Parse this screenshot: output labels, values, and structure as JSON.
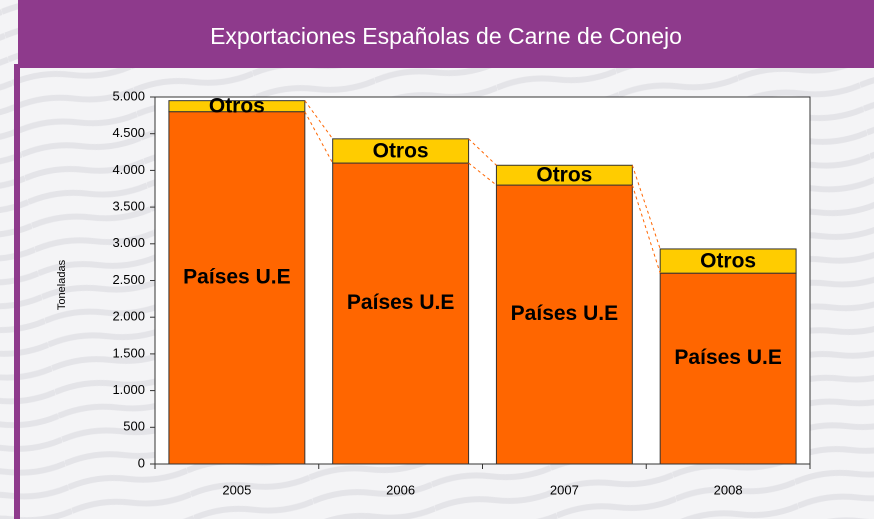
{
  "chart_data": {
    "type": "stacked_bar",
    "title": "Exportaciones Españolas de Carne de Conejo",
    "y_label": "Toneladas",
    "categories": [
      "2005",
      "2006",
      "2007",
      "2008"
    ],
    "series": [
      {
        "name": "Países U.E",
        "color": "#ff6600",
        "values": [
          4800,
          4100,
          3800,
          2600
        ]
      },
      {
        "name": "Otros",
        "color": "#ffcc00",
        "values": [
          150,
          330,
          270,
          330
        ]
      }
    ],
    "ylim": [
      0,
      5000
    ],
    "yticks": [
      0,
      500,
      {
        "value": 1000,
        "label": "1.000"
      },
      {
        "value": 1500,
        "label": "1.500"
      },
      {
        "value": 2000,
        "label": "2.000"
      },
      {
        "value": 2500,
        "label": "2.500"
      },
      {
        "value": 3000,
        "label": "3.000"
      },
      {
        "value": 3500,
        "label": "3.500"
      },
      {
        "value": 4000,
        "label": "4.000"
      },
      {
        "value": 4500,
        "label": "4.500"
      },
      {
        "value": 5000,
        "label": "5.000"
      }
    ]
  }
}
